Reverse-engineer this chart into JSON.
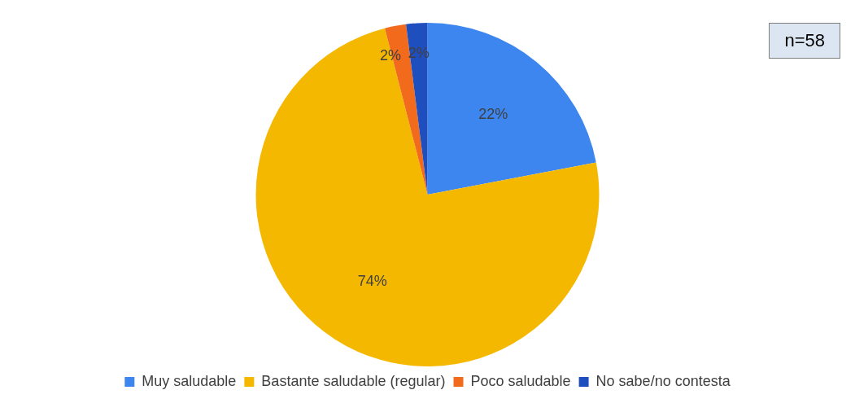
{
  "chart_data": {
    "type": "pie",
    "categories": [
      "Muy saludable",
      "Bastante saludable (regular)",
      "Poco saludable",
      "No sabe/no contesta"
    ],
    "values": [
      22,
      74,
      2,
      2
    ],
    "colors": [
      "#3d86f0",
      "#f5b800",
      "#f26b1d",
      "#1f4fbf"
    ],
    "value_labels": [
      "22%",
      "74%",
      "2%",
      "2%"
    ],
    "legend": "bottom",
    "annotations": [
      "n=58"
    ]
  }
}
